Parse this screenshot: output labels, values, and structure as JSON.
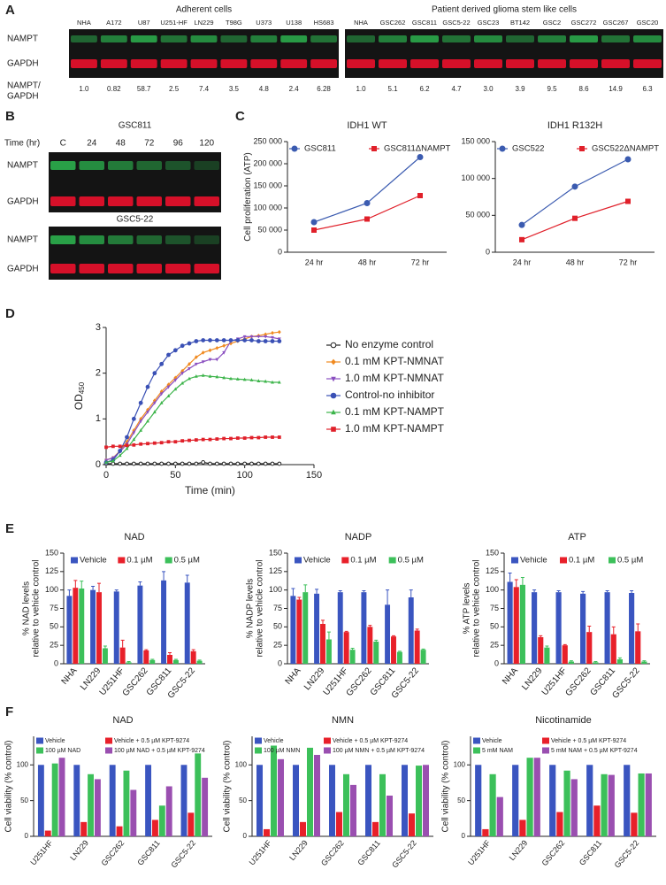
{
  "panels": [
    "A",
    "B",
    "C",
    "D",
    "E",
    "F"
  ],
  "blots": {
    "A": {
      "groups": [
        {
          "title": "Adherent cells",
          "lanes": [
            "NHA",
            "A172",
            "U87",
            "U251-HF",
            "LN229",
            "T98G",
            "U373",
            "U138",
            "HS683"
          ],
          "ratios": [
            "1.0",
            "0.82",
            "58.7",
            "2.5",
            "7.4",
            "3.5",
            "4.8",
            "2.4",
            "6.28"
          ]
        },
        {
          "title": "Patient derived glioma stem like cells",
          "lanes": [
            "NHA",
            "GSC262",
            "GSC811",
            "GSC5-22",
            "GSC23",
            "BT142",
            "GSC2",
            "GSC272",
            "GSC267",
            "GSC20"
          ],
          "ratios": [
            "1.0",
            "5.1",
            "6.2",
            "4.7",
            "3.0",
            "3.9",
            "9.5",
            "8.6",
            "14.9",
            "6.3"
          ]
        }
      ],
      "rows": [
        "NAMPT",
        "GAPDH"
      ],
      "ratio_label": [
        "NAMPT/",
        "GAPDH"
      ]
    },
    "B": {
      "time_label": "Time (hr)",
      "lanes": [
        "C",
        "24",
        "48",
        "72",
        "96",
        "120"
      ],
      "blots": [
        {
          "title": "GSC811",
          "rows": [
            "NAMPT",
            "GAPDH"
          ]
        },
        {
          "title": "GSC5-22",
          "rows": [
            "NAMPT",
            "GAPDH"
          ]
        }
      ]
    }
  },
  "chart_data": [
    {
      "type": "line",
      "title": "IDH1 WT",
      "y_label": "Cell proliferation (ATP)",
      "legend": "top",
      "categories": [
        "24 hr",
        "48 hr",
        "72 hr"
      ],
      "series": [
        {
          "name": "GSC811",
          "color": "#3b5bb0",
          "marker": "circle",
          "values": [
            68000,
            111000,
            215000
          ]
        },
        {
          "name": "GSC811ΔNAMPT",
          "color": "#e0202a",
          "marker": "square",
          "values": [
            50000,
            75000,
            128000
          ]
        }
      ],
      "ylim": [
        0,
        250000
      ],
      "yticks": [
        0,
        {
          "value": 50000,
          "label": "50 000"
        },
        {
          "value": 100000,
          "label": "100 000"
        },
        {
          "value": 150000,
          "label": "150 000"
        },
        {
          "value": 200000,
          "label": "200 000"
        },
        {
          "value": 250000,
          "label": "250 000"
        }
      ]
    },
    {
      "type": "line",
      "title": "IDH1 R132H",
      "legend": "top",
      "categories": [
        "24 hr",
        "48 hr",
        "72 hr"
      ],
      "series": [
        {
          "name": "GSC522",
          "color": "#3b5bb0",
          "marker": "circle",
          "values": [
            37000,
            89000,
            126000
          ]
        },
        {
          "name": "GSC522ΔNAMPT",
          "color": "#e0202a",
          "marker": "square",
          "values": [
            17000,
            46000,
            69000
          ]
        }
      ],
      "ylim": [
        0,
        150000
      ],
      "yticks": [
        0,
        {
          "value": 50000,
          "label": "50 000"
        },
        {
          "value": 100000,
          "label": "100 000"
        },
        {
          "value": 150000,
          "label": "150 000"
        }
      ]
    },
    {
      "type": "line",
      "x_label": "Time (min)",
      "y_label": "OD",
      "y_label_sub": "450",
      "legend": "right",
      "x": [
        0,
        5,
        10,
        15,
        20,
        25,
        30,
        35,
        40,
        45,
        50,
        55,
        60,
        65,
        70,
        75,
        80,
        85,
        90,
        95,
        100,
        105,
        110,
        115,
        120,
        125
      ],
      "series": [
        {
          "name": "No enzyme control",
          "color": "#222222",
          "marker": "circle-open",
          "values": [
            0.02,
            0.02,
            0.02,
            0.02,
            0.02,
            0.02,
            0.02,
            0.02,
            0.02,
            0.02,
            0.02,
            0.02,
            0.02,
            0.02,
            0.05,
            0.02,
            0.02,
            0.02,
            0.02,
            0.02,
            0.02,
            0.02,
            0.02,
            0.02,
            0.02,
            0.02
          ]
        },
        {
          "name": "0.1 mM KPT-NMNAT",
          "color": "#f08a20",
          "marker": "diamond",
          "values": [
            0.1,
            0.15,
            0.3,
            0.5,
            0.75,
            1.0,
            1.2,
            1.4,
            1.6,
            1.75,
            1.9,
            2.05,
            2.2,
            2.35,
            2.45,
            2.5,
            2.55,
            2.6,
            2.65,
            2.7,
            2.75,
            2.8,
            2.82,
            2.85,
            2.88,
            2.9
          ]
        },
        {
          "name": "1.0 mM KPT-NMNAT",
          "color": "#8a4fc0",
          "marker": "triangle-down",
          "values": [
            0.1,
            0.15,
            0.28,
            0.45,
            0.7,
            0.95,
            1.15,
            1.35,
            1.55,
            1.7,
            1.85,
            2.0,
            2.1,
            2.2,
            2.25,
            2.3,
            2.3,
            2.45,
            2.7,
            2.75,
            2.8,
            2.8,
            2.8,
            2.8,
            2.78,
            2.75
          ]
        },
        {
          "name": "Control-no inhibitor",
          "color": "#3a50b5",
          "marker": "circle",
          "values": [
            0.05,
            0.1,
            0.3,
            0.6,
            1.0,
            1.35,
            1.7,
            2.0,
            2.2,
            2.4,
            2.5,
            2.6,
            2.65,
            2.7,
            2.72,
            2.72,
            2.72,
            2.72,
            2.72,
            2.72,
            2.72,
            2.72,
            2.7,
            2.7,
            2.7,
            2.7
          ]
        },
        {
          "name": "0.1 mM KPT-NAMPT",
          "color": "#3cb44a",
          "marker": "triangle",
          "values": [
            0.05,
            0.08,
            0.2,
            0.35,
            0.55,
            0.75,
            0.95,
            1.15,
            1.35,
            1.5,
            1.65,
            1.78,
            1.88,
            1.93,
            1.95,
            1.93,
            1.92,
            1.9,
            1.88,
            1.87,
            1.86,
            1.85,
            1.83,
            1.82,
            1.8,
            1.8
          ]
        },
        {
          "name": "1.0 mM KPT-NAMPT",
          "color": "#e0202a",
          "marker": "square",
          "values": [
            0.38,
            0.4,
            0.4,
            0.42,
            0.43,
            0.45,
            0.46,
            0.47,
            0.48,
            0.5,
            0.5,
            0.52,
            0.53,
            0.54,
            0.55,
            0.55,
            0.56,
            0.57,
            0.57,
            0.58,
            0.58,
            0.59,
            0.59,
            0.6,
            0.6,
            0.6
          ]
        }
      ],
      "xlim": [
        0,
        150
      ],
      "xticks": [
        0,
        50,
        100,
        150
      ],
      "ylim": [
        0,
        3
      ],
      "yticks": [
        0,
        1,
        2,
        3
      ]
    },
    {
      "type": "bar",
      "title": "NAD",
      "y_label": [
        "% NAD levels",
        "relative to vehicle control"
      ],
      "legend": "top",
      "categories": [
        "NHA",
        "LN229",
        "U251HF",
        "GSC262",
        "GSC811",
        "GSC5-22"
      ],
      "series": [
        {
          "name": "Vehicle",
          "color": "#3a55c0",
          "values": [
            92,
            100,
            98,
            106,
            113,
            110
          ],
          "errors": [
            8,
            5,
            2,
            5,
            12,
            10
          ]
        },
        {
          "name": "0.1 µM",
          "color": "#e8202a",
          "values": [
            103,
            97,
            22,
            18,
            12,
            17
          ],
          "errors": [
            10,
            12,
            10,
            1,
            3,
            2
          ]
        },
        {
          "name": "0.5 µM",
          "color": "#3cc05a",
          "values": [
            102,
            21,
            2,
            5,
            5,
            4
          ],
          "errors": [
            10,
            3,
            1,
            1,
            1,
            1
          ]
        }
      ],
      "ylim": [
        0,
        150
      ],
      "yticks": [
        0,
        25,
        50,
        75,
        100,
        125,
        150
      ]
    },
    {
      "type": "bar",
      "title": "NADP",
      "y_label": [
        "% NADP levels",
        "relative to vehicle control"
      ],
      "legend": "top",
      "categories": [
        "NHA",
        "LN229",
        "U251HF",
        "GSC262",
        "GSC811",
        "GSC5-22"
      ],
      "series": [
        {
          "name": "Vehicle",
          "color": "#3a55c0",
          "values": [
            92,
            95,
            97,
            97,
            80,
            90
          ],
          "errors": [
            10,
            6,
            2,
            2,
            20,
            10
          ]
        },
        {
          "name": "0.1 µM",
          "color": "#e8202a",
          "values": [
            87,
            54,
            43,
            50,
            37,
            45
          ],
          "errors": [
            3,
            5,
            1,
            2,
            1,
            2
          ]
        },
        {
          "name": "0.5 µM",
          "color": "#3cc05a",
          "values": [
            97,
            33,
            19,
            30,
            16,
            19
          ],
          "errors": [
            10,
            10,
            2,
            2,
            1,
            1
          ]
        }
      ],
      "ylim": [
        0,
        150
      ],
      "yticks": [
        0,
        25,
        50,
        75,
        100,
        125,
        150
      ]
    },
    {
      "type": "bar",
      "title": "ATP",
      "y_label": [
        "% ATP levels",
        "relative to vehicle control"
      ],
      "legend": "top",
      "categories": [
        "NHA",
        "LN229",
        "U251HF",
        "GSC262",
        "GSC811",
        "GSC5-22"
      ],
      "series": [
        {
          "name": "Vehicle",
          "color": "#3a55c0",
          "values": [
            111,
            97,
            97,
            95,
            97,
            96
          ],
          "errors": [
            12,
            3,
            2,
            3,
            2,
            3
          ]
        },
        {
          "name": "0.1 µM",
          "color": "#e8202a",
          "values": [
            104,
            36,
            25,
            43,
            40,
            44
          ],
          "errors": [
            10,
            2,
            1,
            8,
            10,
            10
          ]
        },
        {
          "name": "0.5 µM",
          "color": "#3cc05a",
          "values": [
            107,
            22,
            3,
            2,
            6,
            3
          ],
          "errors": [
            10,
            2,
            1,
            1,
            2,
            1
          ]
        }
      ],
      "ylim": [
        0,
        150
      ],
      "yticks": [
        0,
        25,
        50,
        75,
        100,
        125,
        150
      ]
    },
    {
      "type": "bar",
      "title": "NAD",
      "y_label": [
        "Cell viability (% control)"
      ],
      "legend": "top-2col",
      "categories": [
        "U251HF",
        "LN229",
        "GSC262",
        "GSC811",
        "GSC5-22"
      ],
      "series": [
        {
          "name": "Vehicle",
          "color": "#3a55c0",
          "values": [
            100,
            100,
            100,
            100,
            100
          ]
        },
        {
          "name": "Vehicle + 0.5 µM KPT-9274",
          "color": "#e8202a",
          "values": [
            8,
            20,
            14,
            23,
            33
          ]
        },
        {
          "name": "100 µM NAD",
          "color": "#3cc05a",
          "values": [
            102,
            87,
            92,
            43,
            116
          ]
        },
        {
          "name": "100 µM NAD + 0.5 µM KPT-9274",
          "color": "#9a4fb0",
          "values": [
            110,
            80,
            65,
            70,
            82
          ]
        }
      ],
      "ylim": [
        0,
        140
      ],
      "yticks": [
        0,
        50,
        100
      ]
    },
    {
      "type": "bar",
      "title": "NMN",
      "y_label": [
        "Cell viability (% control)"
      ],
      "legend": "top-2col",
      "categories": [
        "U251HF",
        "LN229",
        "GSC262",
        "GSC811",
        "GSC5-22"
      ],
      "series": [
        {
          "name": "Vehicle",
          "color": "#3a55c0",
          "values": [
            100,
            100,
            100,
            100,
            100
          ]
        },
        {
          "name": "Vehicle + 0.5 µM KPT-9274",
          "color": "#e8202a",
          "values": [
            10,
            20,
            34,
            20,
            32
          ]
        },
        {
          "name": "100 µM NMN",
          "color": "#3cc05a",
          "values": [
            127,
            124,
            87,
            87,
            99
          ]
        },
        {
          "name": "100 µM NMN + 0.5 µM KPT-9274",
          "color": "#9a4fb0",
          "values": [
            108,
            114,
            72,
            57,
            100
          ]
        }
      ],
      "ylim": [
        0,
        140
      ],
      "yticks": [
        0,
        50,
        100
      ]
    },
    {
      "type": "bar",
      "title": "Nicotinamide",
      "y_label": [
        "Cell viability (% control)"
      ],
      "legend": "top-2col",
      "categories": [
        "U251HF",
        "LN229",
        "GSC262",
        "GSC811",
        "GSC5-22"
      ],
      "series": [
        {
          "name": "Vehicle",
          "color": "#3a55c0",
          "values": [
            100,
            100,
            100,
            100,
            100
          ]
        },
        {
          "name": "Vehicle + 0.5 µM KPT-9274",
          "color": "#e8202a",
          "values": [
            10,
            23,
            34,
            43,
            33
          ]
        },
        {
          "name": "5 mM NAM",
          "color": "#3cc05a",
          "values": [
            87,
            110,
            92,
            87,
            88
          ]
        },
        {
          "name": "5 mM NAM + 0.5 µM KPT-9274",
          "color": "#9a4fb0",
          "values": [
            55,
            110,
            80,
            86,
            88
          ]
        }
      ],
      "ylim": [
        0,
        140
      ],
      "yticks": [
        0,
        50,
        100
      ]
    }
  ]
}
